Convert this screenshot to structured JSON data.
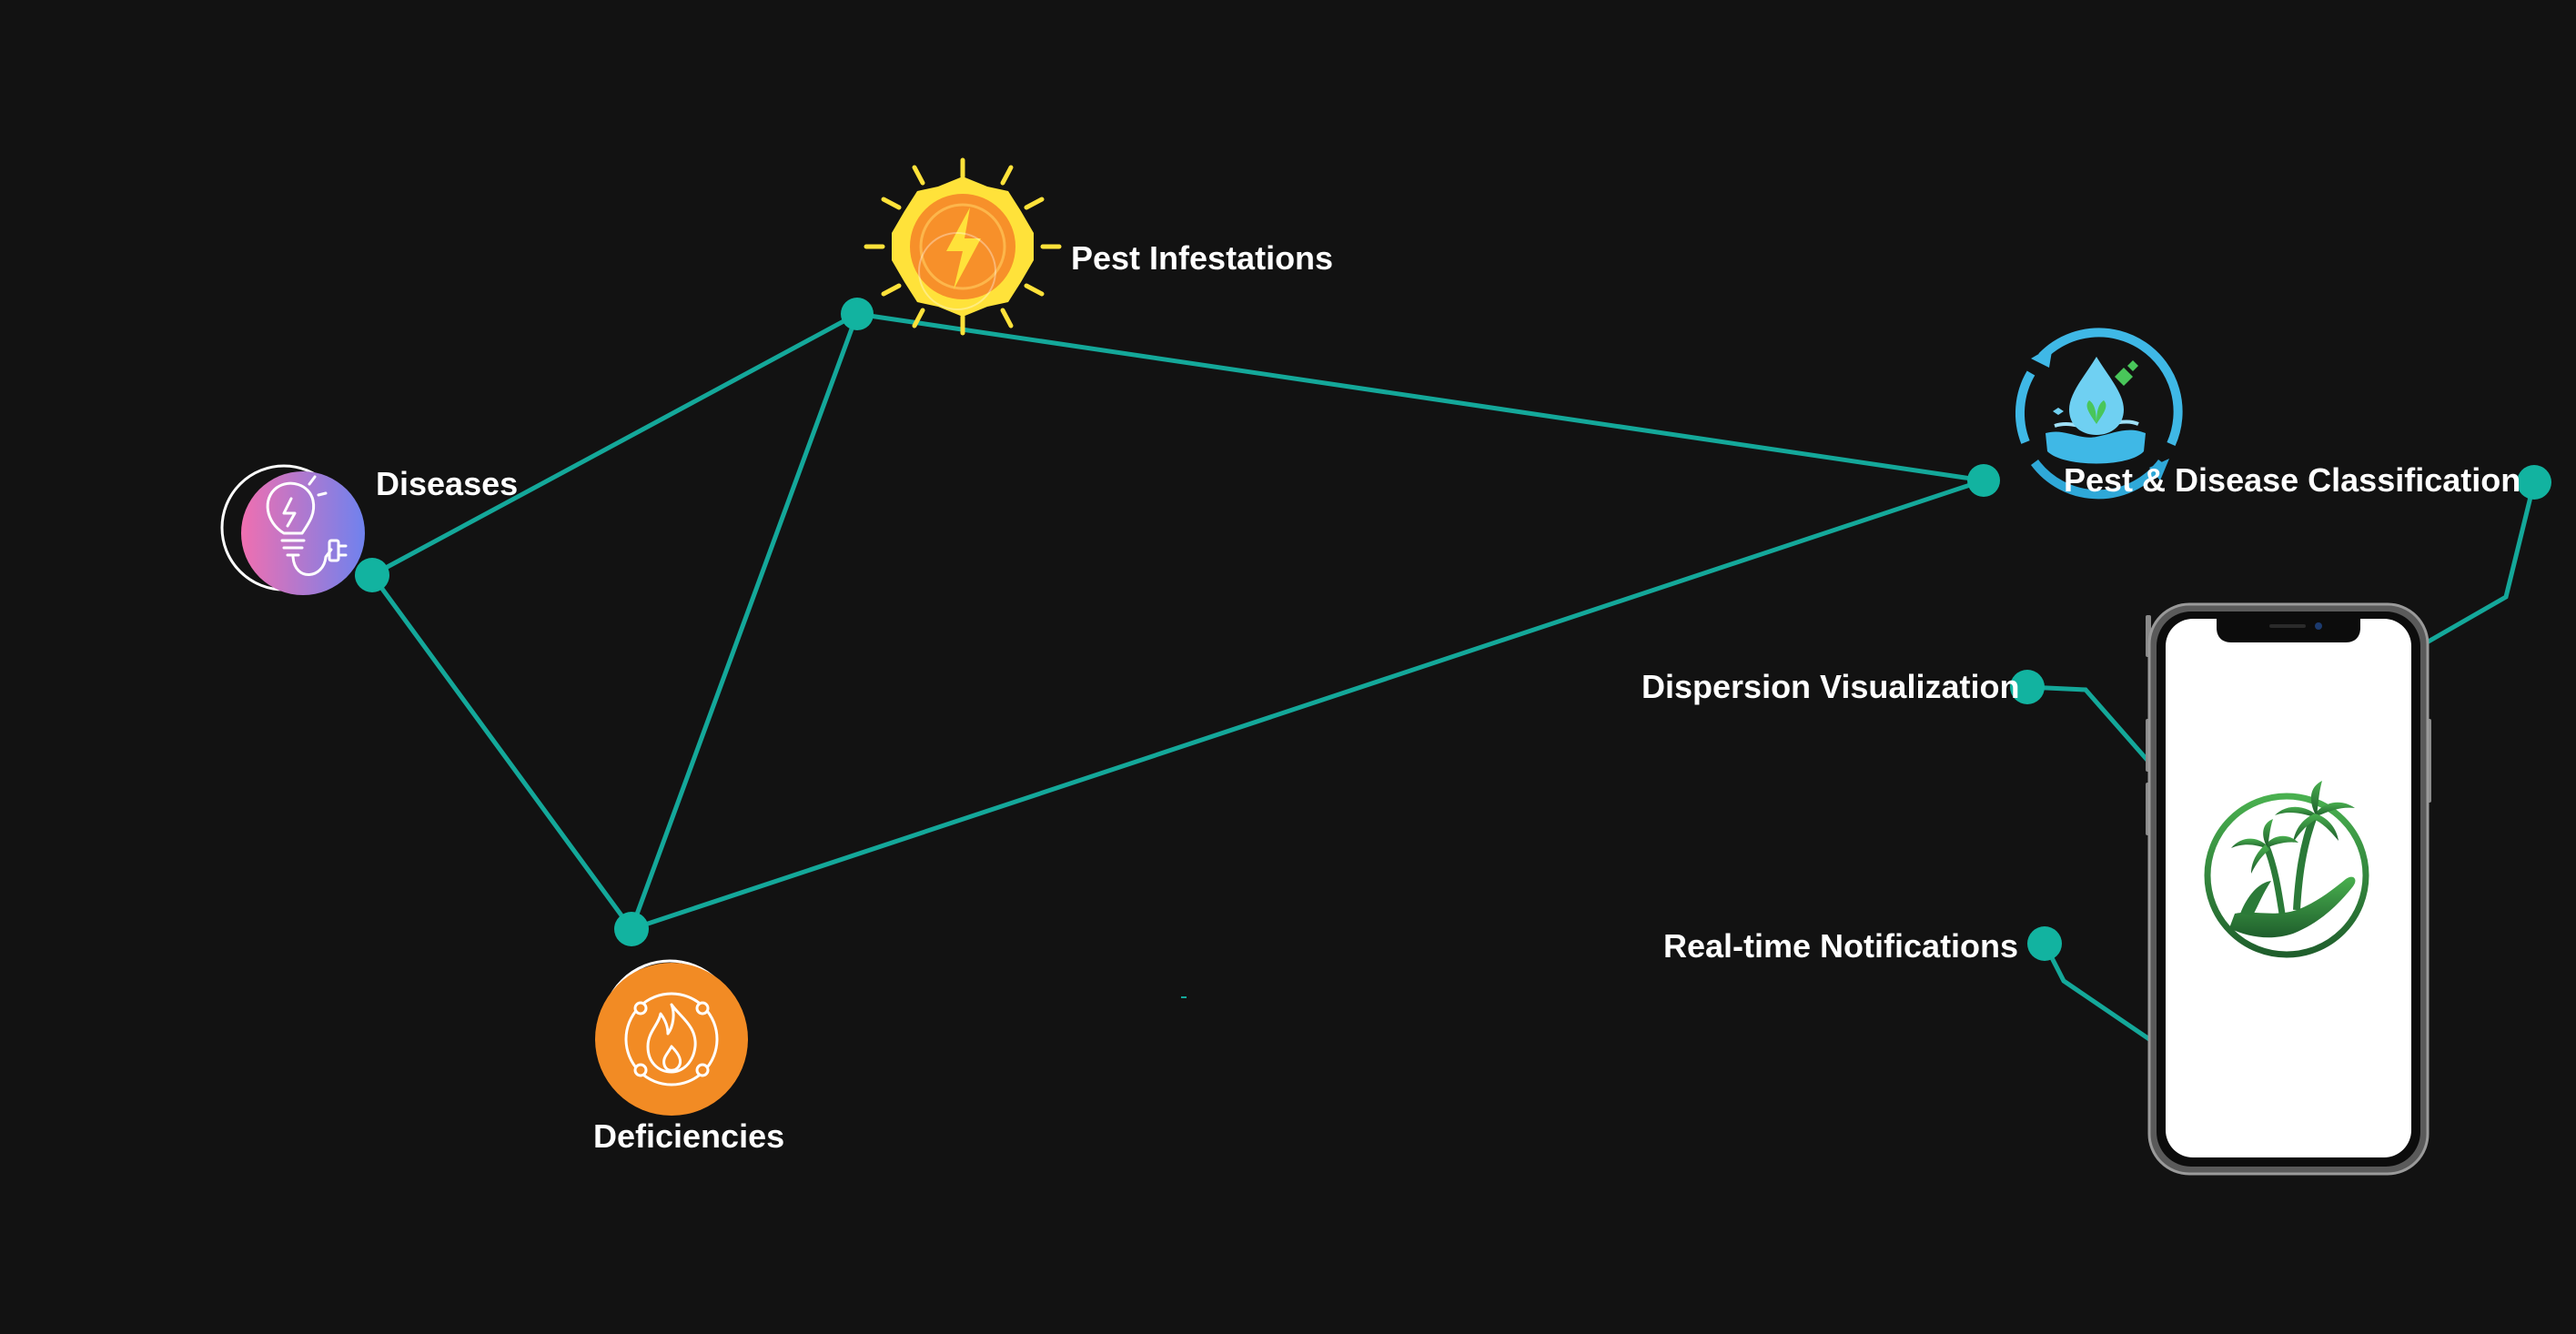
{
  "colors": {
    "background": "#121212",
    "connector": "#14a89a",
    "node": "#12b3a0",
    "label": "#ffffff",
    "deficiency_orange": "#f28b24",
    "sun_yellow": "#ffe23a",
    "sun_orange": "#f7902a",
    "water_blue": "#3fb8e6",
    "leaf_green": "#2f8f3e"
  },
  "nodes": {
    "pest_infestations": {
      "label": "Pest Infestations",
      "icon": "sun-lightning-icon"
    },
    "diseases": {
      "label": "Diseases",
      "icon": "lightbulb-plug-icon"
    },
    "deficiencies": {
      "label": "Deficiencies",
      "icon": "fire-icon"
    },
    "classification": {
      "label": "Pest & Disease Classification",
      "icon": "water-drop-leaf-cycle-icon"
    }
  },
  "phone": {
    "icon": "palm-tree-hand-logo-icon",
    "features": [
      {
        "label": "Dispersion Visualization"
      },
      {
        "label": "Real-time Notifications"
      }
    ]
  }
}
